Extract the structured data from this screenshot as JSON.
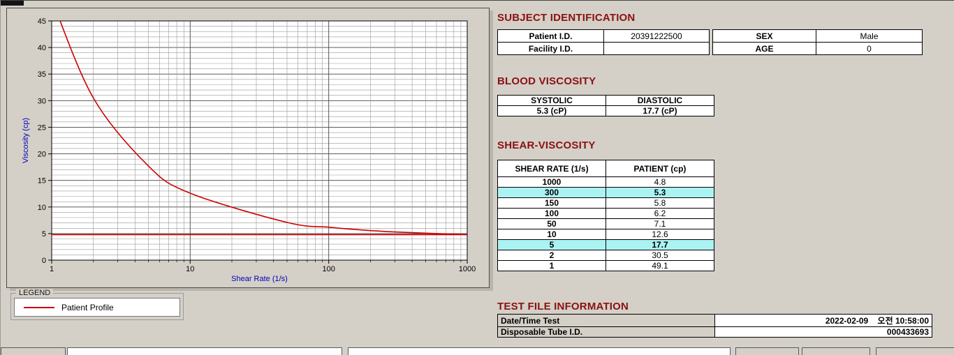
{
  "colors": {
    "header_text": "#8b1111",
    "table_header_bg": "#f08080",
    "highlight_bg": "#abf3f3",
    "curve": "#cc0000",
    "axis_label": "#0000bb",
    "window_bg": "#d4d0c8"
  },
  "chart_data": {
    "type": "line",
    "title": "",
    "xlabel": "Shear Rate (1/s)",
    "ylabel": "Viscosity (cp)",
    "x_scale": "log",
    "xlim": [
      1,
      1000
    ],
    "ylim": [
      0,
      45
    ],
    "x_ticks": [
      1,
      10,
      100,
      1000
    ],
    "y_ticks": [
      0,
      5,
      10,
      15,
      20,
      25,
      30,
      35,
      40,
      45
    ],
    "grid": true,
    "legend_position": "below-left",
    "series": [
      {
        "name": "Patient Profile",
        "color": "#cc0000",
        "x": [
          1,
          2,
          5,
          10,
          50,
          100,
          150,
          300,
          1000
        ],
        "y": [
          49.1,
          30.5,
          17.7,
          12.6,
          7.1,
          6.2,
          5.8,
          5.3,
          4.8
        ]
      },
      {
        "name": "horizontal-reference-line",
        "color": "#cc0000",
        "x": [
          1,
          1000
        ],
        "y": [
          4.8,
          4.8
        ]
      }
    ]
  },
  "legend": {
    "title": "LEGEND",
    "items": [
      {
        "label": "Patient Profile",
        "color": "#cc0000"
      }
    ]
  },
  "subject": {
    "title": "SUBJECT IDENTIFICATION",
    "rows": [
      {
        "label1": "Patient I.D.",
        "value1": "20391222500",
        "label2": "SEX",
        "value2": "Male"
      },
      {
        "label1": "Facility I.D.",
        "value1": "",
        "label2": "AGE",
        "value2": "0"
      }
    ]
  },
  "blood_viscosity": {
    "title": "BLOOD VISCOSITY",
    "headers": [
      "SYSTOLIC",
      "DIASTOLIC"
    ],
    "values": [
      "5.3 (cP)",
      "17.7 (cP)"
    ]
  },
  "shear_viscosity": {
    "title": "SHEAR-VISCOSITY",
    "headers": [
      "SHEAR RATE (1/s)",
      "PATIENT (cp)"
    ],
    "rows": [
      {
        "rate": "1000",
        "value": "4.8",
        "highlight": false
      },
      {
        "rate": "300",
        "value": "5.3",
        "highlight": true
      },
      {
        "rate": "150",
        "value": "5.8",
        "highlight": false
      },
      {
        "rate": "100",
        "value": "6.2",
        "highlight": false
      },
      {
        "rate": "50",
        "value": "7.1",
        "highlight": false
      },
      {
        "rate": "10",
        "value": "12.6",
        "highlight": false
      },
      {
        "rate": "5",
        "value": "17.7",
        "highlight": true
      },
      {
        "rate": "2",
        "value": "30.5",
        "highlight": false
      },
      {
        "rate": "1",
        "value": "49.1",
        "highlight": false
      }
    ]
  },
  "test_file": {
    "title": "TEST FILE INFORMATION",
    "rows": [
      {
        "label": "Date/Time Test",
        "value": "2022-02-09    오전 10:58:00"
      },
      {
        "label": "Disposable Tube I.D.",
        "value": "000433693"
      }
    ]
  }
}
